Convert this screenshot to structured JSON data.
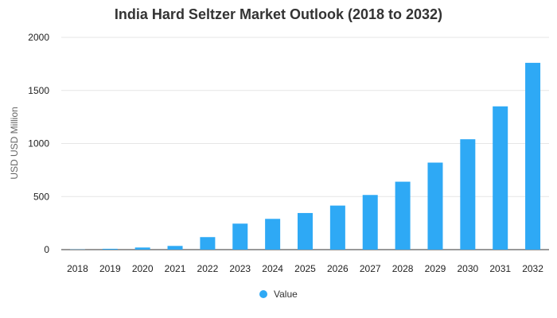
{
  "chart_data": {
    "type": "bar",
    "title": "India Hard Seltzer Market Outlook (2018 to 2032)",
    "xlabel": "",
    "ylabel": "USD USD Million",
    "categories": [
      "2018",
      "2019",
      "2020",
      "2021",
      "2022",
      "2023",
      "2024",
      "2025",
      "2026",
      "2027",
      "2028",
      "2029",
      "2030",
      "2031",
      "2032"
    ],
    "series": [
      {
        "name": "Value",
        "values": [
          2,
          8,
          20,
          35,
          118,
          245,
          290,
          345,
          415,
          515,
          640,
          820,
          1040,
          1350,
          1760
        ]
      }
    ],
    "ylim": [
      0,
      2000
    ],
    "yticks": [
      0,
      500,
      1000,
      1500,
      2000
    ],
    "grid": true,
    "legend_position": "bottom",
    "colors": {
      "bar": "#2ea9f5",
      "grid": "#e6e6e6",
      "axis": "#333333"
    }
  }
}
